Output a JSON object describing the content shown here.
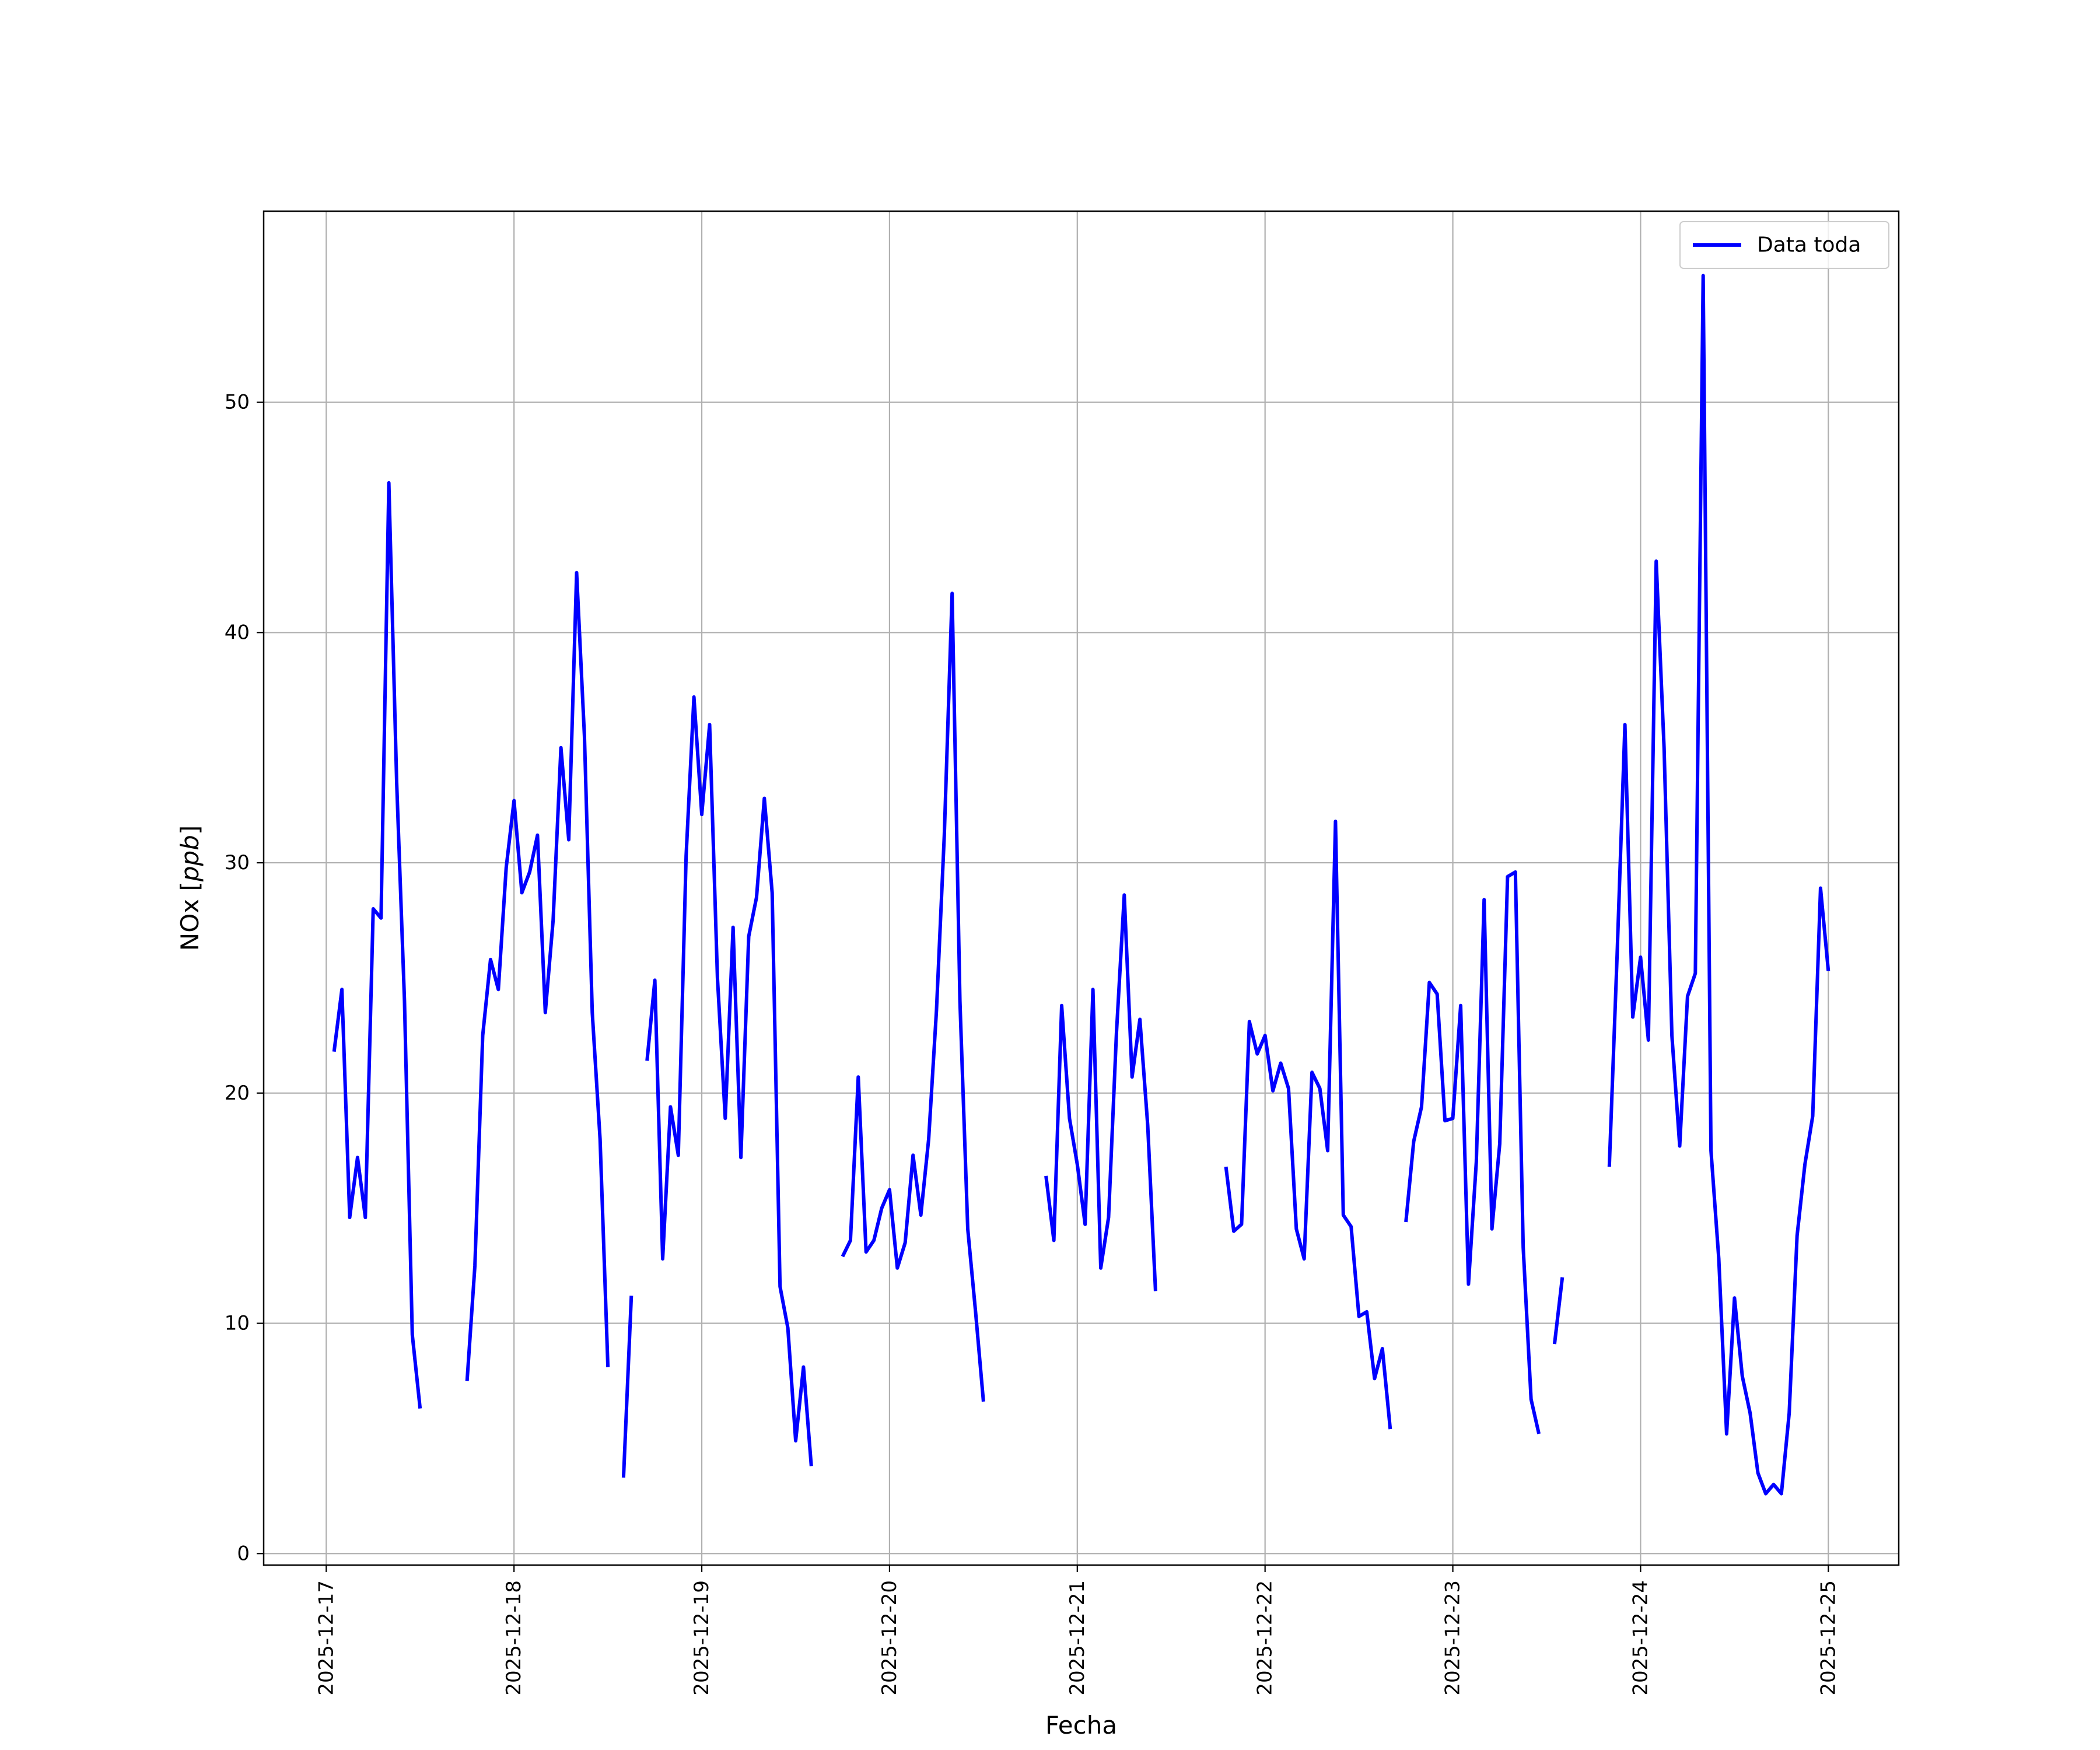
{
  "chart_data": {
    "type": "line",
    "title": "",
    "xlabel": "Fecha",
    "ylabel": "NOx [ppb]",
    "ylabel_base": "NOx ",
    "ylabel_unit": "ppb",
    "x_type": "date",
    "xlim": [
      "2025-12-16T16:00",
      "2025-12-25T09:00"
    ],
    "ylim": [
      -0.5,
      58.3
    ],
    "x_ticks": [
      "2025-12-17",
      "2025-12-18",
      "2025-12-19",
      "2025-12-20",
      "2025-12-21",
      "2025-12-22",
      "2025-12-23",
      "2025-12-24",
      "2025-12-25"
    ],
    "y_ticks": [
      0,
      10,
      20,
      30,
      40,
      50
    ],
    "y_tick_labels": [
      "0",
      "10",
      "20",
      "30",
      "40",
      "50"
    ],
    "grid": true,
    "legend_position": "top-right",
    "colors": {
      "series": "#0000ff",
      "grid": "#b0b0b0",
      "axes": "#000000"
    },
    "series": [
      {
        "name": "Data toda",
        "segments": [
          [
            [
              "2025-12-17T01:00",
              21.8
            ],
            [
              "2025-12-17T02:00",
              24.5
            ],
            [
              "2025-12-17T03:00",
              14.6
            ],
            [
              "2025-12-17T04:00",
              17.2
            ],
            [
              "2025-12-17T05:00",
              14.6
            ],
            [
              "2025-12-17T06:00",
              28.0
            ],
            [
              "2025-12-17T07:00",
              27.6
            ],
            [
              "2025-12-17T08:00",
              46.5
            ],
            [
              "2025-12-17T09:00",
              33.5
            ],
            [
              "2025-12-17T10:00",
              24.0
            ],
            [
              "2025-12-17T11:00",
              9.5
            ],
            [
              "2025-12-17T12:00",
              6.3
            ]
          ],
          [
            [
              "2025-12-17T18:00",
              7.5
            ],
            [
              "2025-12-17T19:00",
              12.5
            ],
            [
              "2025-12-17T20:00",
              22.5
            ],
            [
              "2025-12-17T21:00",
              25.8
            ],
            [
              "2025-12-17T22:00",
              24.5
            ],
            [
              "2025-12-17T23:00",
              29.8
            ],
            [
              "2025-12-18T00:00",
              32.7
            ],
            [
              "2025-12-18T01:00",
              28.7
            ],
            [
              "2025-12-18T02:00",
              29.6
            ],
            [
              "2025-12-18T03:00",
              31.2
            ],
            [
              "2025-12-18T04:00",
              23.5
            ],
            [
              "2025-12-18T05:00",
              27.5
            ],
            [
              "2025-12-18T06:00",
              35.0
            ],
            [
              "2025-12-18T07:00",
              31.0
            ],
            [
              "2025-12-18T08:00",
              42.6
            ],
            [
              "2025-12-18T09:00",
              35.5
            ],
            [
              "2025-12-18T10:00",
              23.5
            ],
            [
              "2025-12-18T11:00",
              18.0
            ],
            [
              "2025-12-18T12:00",
              8.1
            ]
          ],
          [
            [
              "2025-12-18T14:00",
              3.3
            ],
            [
              "2025-12-18T15:00",
              11.2
            ]
          ],
          [
            [
              "2025-12-18T17:00",
              21.4
            ],
            [
              "2025-12-18T18:00",
              24.9
            ],
            [
              "2025-12-18T19:00",
              12.8
            ],
            [
              "2025-12-18T20:00",
              19.4
            ],
            [
              "2025-12-18T21:00",
              17.3
            ],
            [
              "2025-12-18T22:00",
              30.3
            ],
            [
              "2025-12-18T23:00",
              37.2
            ],
            [
              "2025-12-19T00:00",
              32.1
            ],
            [
              "2025-12-19T01:00",
              36.0
            ],
            [
              "2025-12-19T02:00",
              25.0
            ],
            [
              "2025-12-19T03:00",
              18.9
            ],
            [
              "2025-12-19T04:00",
              27.2
            ],
            [
              "2025-12-19T05:00",
              17.2
            ],
            [
              "2025-12-19T06:00",
              26.8
            ],
            [
              "2025-12-19T07:00",
              28.5
            ],
            [
              "2025-12-19T08:00",
              32.8
            ],
            [
              "2025-12-19T09:00",
              28.7
            ],
            [
              "2025-12-19T10:00",
              11.6
            ],
            [
              "2025-12-19T11:00",
              9.8
            ],
            [
              "2025-12-19T12:00",
              4.9
            ],
            [
              "2025-12-19T13:00",
              8.1
            ],
            [
              "2025-12-19T14:00",
              3.8
            ]
          ],
          [
            [
              "2025-12-19T18:00",
              12.9
            ],
            [
              "2025-12-19T19:00",
              13.6
            ],
            [
              "2025-12-19T20:00",
              20.7
            ],
            [
              "2025-12-19T21:00",
              13.1
            ],
            [
              "2025-12-19T22:00",
              13.6
            ],
            [
              "2025-12-19T23:00",
              15.0
            ],
            [
              "2025-12-20T00:00",
              15.8
            ],
            [
              "2025-12-20T01:00",
              12.4
            ],
            [
              "2025-12-20T02:00",
              13.5
            ],
            [
              "2025-12-20T03:00",
              17.3
            ],
            [
              "2025-12-20T04:00",
              14.7
            ],
            [
              "2025-12-20T05:00",
              18.0
            ],
            [
              "2025-12-20T06:00",
              23.6
            ],
            [
              "2025-12-20T07:00",
              31.2
            ],
            [
              "2025-12-20T08:00",
              41.7
            ],
            [
              "2025-12-20T09:00",
              24.0
            ],
            [
              "2025-12-20T10:00",
              14.1
            ],
            [
              "2025-12-20T11:00",
              10.5
            ],
            [
              "2025-12-20T12:00",
              6.6
            ]
          ],
          [
            [
              "2025-12-20T20:00",
              16.4
            ],
            [
              "2025-12-20T21:00",
              13.6
            ],
            [
              "2025-12-20T22:00",
              23.8
            ],
            [
              "2025-12-20T23:00",
              18.9
            ],
            [
              "2025-12-21T00:00",
              16.9
            ],
            [
              "2025-12-21T01:00",
              14.3
            ],
            [
              "2025-12-21T02:00",
              24.5
            ],
            [
              "2025-12-21T03:00",
              12.4
            ],
            [
              "2025-12-21T04:00",
              14.6
            ],
            [
              "2025-12-21T05:00",
              22.6
            ],
            [
              "2025-12-21T06:00",
              28.6
            ],
            [
              "2025-12-21T07:00",
              20.7
            ],
            [
              "2025-12-21T08:00",
              23.2
            ],
            [
              "2025-12-21T09:00",
              18.6
            ],
            [
              "2025-12-21T10:00",
              11.4
            ]
          ],
          [
            [
              "2025-12-21T19:00",
              16.8
            ],
            [
              "2025-12-21T20:00",
              14.0
            ],
            [
              "2025-12-21T21:00",
              14.3
            ],
            [
              "2025-12-21T22:00",
              23.1
            ],
            [
              "2025-12-21T23:00",
              21.7
            ],
            [
              "2025-12-22T00:00",
              22.5
            ],
            [
              "2025-12-22T01:00",
              20.1
            ],
            [
              "2025-12-22T02:00",
              21.3
            ],
            [
              "2025-12-22T03:00",
              20.2
            ],
            [
              "2025-12-22T04:00",
              14.1
            ],
            [
              "2025-12-22T05:00",
              12.8
            ],
            [
              "2025-12-22T06:00",
              20.9
            ],
            [
              "2025-12-22T07:00",
              20.2
            ],
            [
              "2025-12-22T08:00",
              17.5
            ],
            [
              "2025-12-22T09:00",
              31.8
            ],
            [
              "2025-12-22T10:00",
              14.7
            ],
            [
              "2025-12-22T11:00",
              14.2
            ],
            [
              "2025-12-22T12:00",
              10.3
            ],
            [
              "2025-12-22T13:00",
              10.5
            ],
            [
              "2025-12-22T14:00",
              7.6
            ],
            [
              "2025-12-22T15:00",
              8.9
            ],
            [
              "2025-12-22T16:00",
              5.4
            ]
          ],
          [
            [
              "2025-12-22T18:00",
              14.4
            ],
            [
              "2025-12-22T19:00",
              17.9
            ],
            [
              "2025-12-22T20:00",
              19.4
            ],
            [
              "2025-12-22T21:00",
              24.8
            ],
            [
              "2025-12-22T22:00",
              24.3
            ],
            [
              "2025-12-22T23:00",
              18.8
            ],
            [
              "2025-12-23T00:00",
              18.9
            ],
            [
              "2025-12-23T01:00",
              23.8
            ],
            [
              "2025-12-23T02:00",
              11.7
            ],
            [
              "2025-12-23T03:00",
              17.0
            ],
            [
              "2025-12-23T04:00",
              28.4
            ],
            [
              "2025-12-23T05:00",
              14.1
            ],
            [
              "2025-12-23T06:00",
              17.8
            ],
            [
              "2025-12-23T07:00",
              29.4
            ],
            [
              "2025-12-23T08:00",
              29.6
            ],
            [
              "2025-12-23T09:00",
              13.3
            ],
            [
              "2025-12-23T10:00",
              6.7
            ],
            [
              "2025-12-23T11:00",
              5.2
            ]
          ],
          [
            [
              "2025-12-23T13:00",
              9.1
            ],
            [
              "2025-12-23T14:00",
              12.0
            ]
          ],
          [
            [
              "2025-12-23T20:00",
              16.8
            ],
            [
              "2025-12-23T21:00",
              26.0
            ],
            [
              "2025-12-23T22:00",
              36.0
            ],
            [
              "2025-12-23T23:00",
              23.3
            ],
            [
              "2025-12-24T00:00",
              25.9
            ],
            [
              "2025-12-24T01:00",
              22.3
            ],
            [
              "2025-12-24T02:00",
              43.1
            ],
            [
              "2025-12-24T03:00",
              35.0
            ],
            [
              "2025-12-24T04:00",
              22.5
            ],
            [
              "2025-12-24T05:00",
              17.7
            ],
            [
              "2025-12-24T06:00",
              24.2
            ],
            [
              "2025-12-24T07:00",
              25.2
            ],
            [
              "2025-12-24T08:00",
              55.5
            ],
            [
              "2025-12-24T09:00",
              17.5
            ],
            [
              "2025-12-24T10:00",
              12.8
            ],
            [
              "2025-12-24T11:00",
              5.2
            ],
            [
              "2025-12-24T12:00",
              11.1
            ],
            [
              "2025-12-24T13:00",
              7.7
            ],
            [
              "2025-12-24T14:00",
              6.1
            ],
            [
              "2025-12-24T15:00",
              3.5
            ],
            [
              "2025-12-24T16:00",
              2.6
            ],
            [
              "2025-12-24T17:00",
              3.0
            ],
            [
              "2025-12-24T18:00",
              2.6
            ],
            [
              "2025-12-24T19:00",
              6.1
            ],
            [
              "2025-12-24T20:00",
              13.8
            ],
            [
              "2025-12-24T21:00",
              16.9
            ],
            [
              "2025-12-24T22:00",
              19.0
            ],
            [
              "2025-12-24T23:00",
              28.9
            ],
            [
              "2025-12-25T00:00",
              25.3
            ]
          ]
        ]
      }
    ]
  }
}
